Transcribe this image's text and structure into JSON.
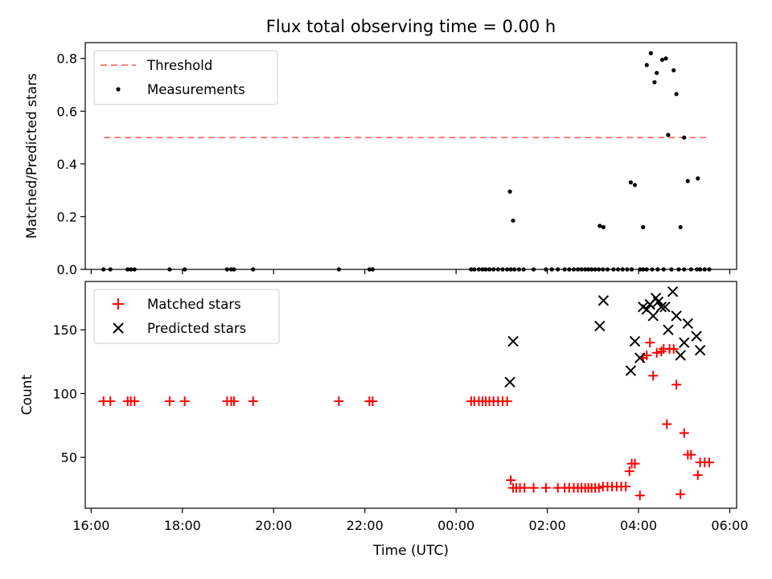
{
  "figure_title": "Flux total observing time = 0.00 h",
  "chart_data": [
    {
      "type": "scatter",
      "name": "ratio",
      "ylabel": "Matched/Predicted stars",
      "xlabel": "",
      "ylim": [
        0.0,
        0.86
      ],
      "yticks": [
        0.0,
        0.2,
        0.4,
        0.6,
        0.8
      ],
      "ytick_labels": [
        "0.0",
        "0.2",
        "0.4",
        "0.6",
        "0.8"
      ],
      "legend_position": "upper-left",
      "threshold": {
        "label": "Threshold",
        "value": 0.5,
        "x_start_h": 16.28,
        "x_end_h": 29.55,
        "color": "#ff7f7f"
      },
      "series": [
        {
          "name": "Measurements",
          "color": "#000000",
          "marker": "dot",
          "x_h": [
            16.27,
            16.42,
            16.8,
            16.87,
            16.95,
            17.72,
            18.05,
            18.98,
            19.07,
            19.13,
            19.55,
            21.43,
            22.1,
            22.17,
            24.33,
            24.4,
            24.5,
            24.58,
            24.65,
            24.73,
            24.82,
            24.92,
            25.02,
            25.12,
            25.2,
            25.28,
            25.38,
            25.48,
            25.7,
            25.97,
            26.1,
            26.23,
            26.38,
            26.48,
            26.58,
            26.67,
            26.75,
            26.83,
            26.9,
            26.97,
            27.05,
            27.13,
            27.22,
            27.32,
            27.45,
            27.55,
            27.65,
            27.75,
            27.85,
            28.03,
            28.1,
            28.18,
            28.3,
            28.42,
            28.55,
            28.72,
            28.88,
            29.0,
            29.15,
            29.28,
            29.35,
            29.45,
            29.55,
            25.18,
            25.25,
            27.15,
            27.23,
            27.83,
            27.92,
            28.1,
            28.18,
            28.27,
            28.35,
            28.4,
            28.52,
            28.6,
            28.65,
            28.77,
            28.83,
            28.92,
            29.0,
            29.08,
            29.3
          ],
          "y": [
            0,
            0,
            0,
            0,
            0,
            0,
            0,
            0,
            0,
            0,
            0,
            0,
            0,
            0,
            0,
            0,
            0,
            0,
            0,
            0,
            0,
            0,
            0,
            0,
            0,
            0,
            0,
            0,
            0,
            0,
            0,
            0,
            0,
            0,
            0,
            0,
            0,
            0,
            0,
            0,
            0,
            0,
            0,
            0,
            0,
            0,
            0,
            0,
            0,
            0,
            0,
            0,
            0,
            0,
            0,
            0,
            0,
            0,
            0,
            0,
            0,
            0,
            0,
            0.295,
            0.185,
            0.165,
            0.16,
            0.33,
            0.32,
            0.16,
            0.775,
            0.82,
            0.71,
            0.745,
            0.795,
            0.8,
            0.51,
            0.755,
            0.665,
            0.16,
            0.5,
            0.335,
            0.345
          ]
        }
      ]
    },
    {
      "type": "scatter",
      "name": "counts",
      "ylabel": "Count",
      "xlabel": "Time (UTC)",
      "ylim": [
        10,
        188
      ],
      "yticks": [
        50,
        100,
        150
      ],
      "ytick_labels": [
        "50",
        "100",
        "150"
      ],
      "xlim_h": [
        15.87,
        30.15
      ],
      "xticks_h": [
        16,
        18,
        20,
        22,
        24,
        26,
        28,
        30
      ],
      "xtick_labels": [
        "16:00",
        "18:00",
        "20:00",
        "22:00",
        "00:00",
        "02:00",
        "04:00",
        "06:00"
      ],
      "legend_position": "upper-left",
      "series": [
        {
          "name": "Matched stars",
          "color": "#ff0000",
          "marker": "plus",
          "x_h": [
            16.27,
            16.42,
            16.8,
            16.87,
            16.95,
            17.72,
            18.05,
            18.98,
            19.07,
            19.13,
            19.55,
            21.43,
            22.1,
            22.17,
            24.33,
            24.4,
            24.5,
            24.58,
            24.65,
            24.73,
            24.82,
            24.92,
            25.02,
            25.12,
            25.2,
            25.25,
            25.32,
            25.4,
            25.5,
            25.7,
            25.97,
            26.23,
            26.38,
            26.48,
            26.58,
            26.67,
            26.75,
            26.83,
            26.9,
            26.97,
            27.05,
            27.13,
            27.22,
            27.32,
            27.42,
            27.52,
            27.62,
            27.72,
            27.8,
            27.85,
            27.92,
            28.03,
            28.1,
            28.18,
            28.25,
            28.32,
            28.4,
            28.5,
            28.55,
            28.62,
            28.68,
            28.77,
            28.83,
            28.92,
            29.0,
            29.08,
            29.15,
            29.3,
            29.35,
            29.45,
            29.55
          ],
          "y": [
            94,
            94,
            94,
            94,
            94,
            94,
            94,
            94,
            94,
            94,
            94,
            94,
            94,
            94,
            94,
            94,
            94,
            94,
            94,
            94,
            94,
            94,
            94,
            94,
            32,
            26,
            26,
            26,
            26,
            26,
            26,
            26,
            26,
            26,
            26,
            26,
            26,
            26,
            26,
            26,
            26,
            26,
            27,
            27,
            27,
            27,
            27,
            27,
            39,
            45,
            45,
            20,
            128,
            130,
            140,
            114,
            132,
            133,
            135,
            76,
            135,
            135,
            107,
            21,
            69,
            52,
            52,
            36,
            46,
            46,
            46
          ]
        },
        {
          "name": "Predicted stars",
          "color": "#000000",
          "marker": "x",
          "x_h": [
            25.18,
            25.25,
            27.15,
            27.23,
            27.83,
            27.92,
            28.03,
            28.1,
            28.18,
            28.25,
            28.32,
            28.38,
            28.43,
            28.5,
            28.58,
            28.65,
            28.75,
            28.83,
            28.92,
            29.0,
            29.08,
            29.27,
            29.35
          ],
          "y": [
            109,
            141,
            153,
            173,
            118,
            141,
            128,
            168,
            166,
            170,
            161,
            175,
            172,
            168,
            168,
            150,
            180,
            161,
            130,
            140,
            155,
            145,
            134
          ]
        }
      ]
    }
  ]
}
